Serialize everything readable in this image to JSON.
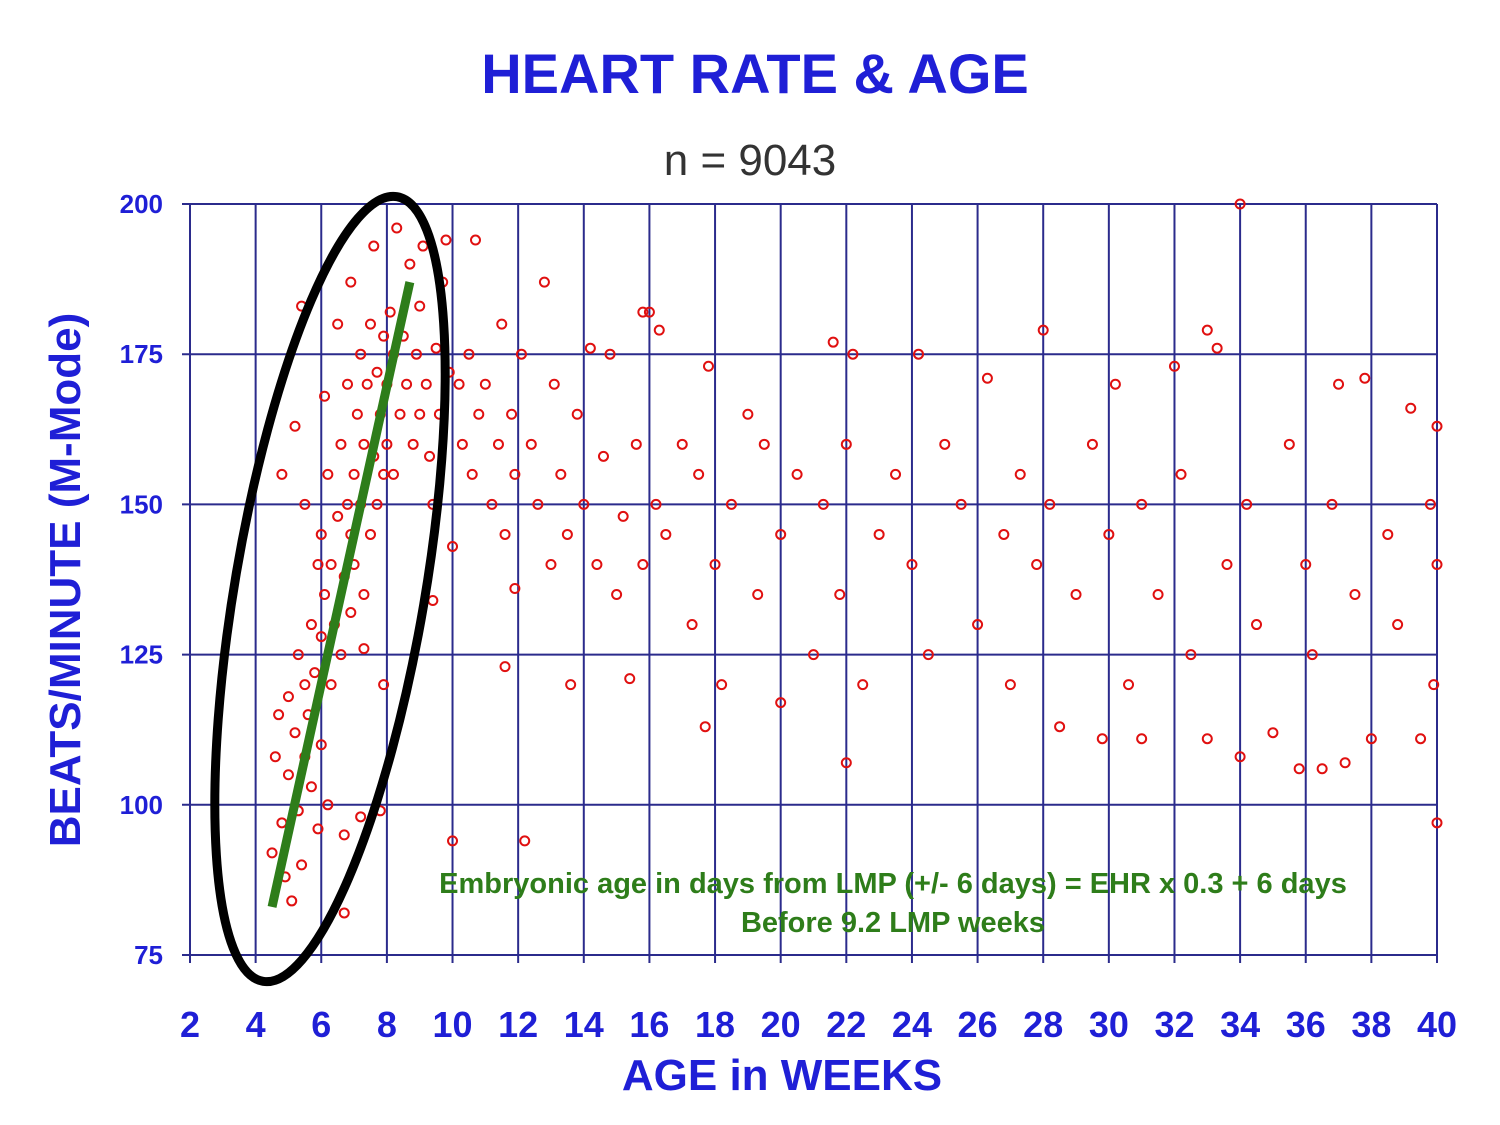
{
  "chart_data": {
    "type": "scatter",
    "title": "HEART RATE & AGE",
    "subtitle": "n = 9043",
    "xlabel": "AGE in WEEKS",
    "ylabel": "BEATS/MINUTE (M-Mode)",
    "xlim": [
      2,
      40
    ],
    "ylim": [
      75,
      200
    ],
    "xticks": [
      "2",
      "4",
      "6",
      "8",
      "10",
      "12",
      "14",
      "16",
      "18",
      "20",
      "22",
      "24",
      "26",
      "28",
      "30",
      "32",
      "34",
      "36",
      "38",
      "40"
    ],
    "yticks": [
      "75",
      "100",
      "125",
      "150",
      "175",
      "200"
    ],
    "grid": true,
    "colors": {
      "title": "#1f1fd6",
      "axis_text": "#1f1fd6",
      "grid": "#2b2b8c",
      "points": "#e01010",
      "trend": "#2e7d1a",
      "ellipse": "#000000",
      "annotation": "#2e7d1a"
    },
    "trend_line": {
      "from": [
        4.5,
        83
      ],
      "to": [
        8.7,
        187
      ]
    },
    "annotation": {
      "line1": "Embryonic age in days from LMP (+/- 6 days) = EHR x 0.3 + 6 days",
      "line2": "Before 9.2 LMP weeks"
    },
    "points": [
      [
        4.5,
        92
      ],
      [
        4.6,
        108
      ],
      [
        4.7,
        115
      ],
      [
        4.8,
        97
      ],
      [
        4.9,
        88
      ],
      [
        5,
        105
      ],
      [
        5,
        118
      ],
      [
        5.1,
        84
      ],
      [
        5.2,
        112
      ],
      [
        5.3,
        99
      ],
      [
        5.3,
        125
      ],
      [
        5.4,
        90
      ],
      [
        5.5,
        120
      ],
      [
        5.5,
        108
      ],
      [
        5.6,
        115
      ],
      [
        5.7,
        103
      ],
      [
        5.7,
        130
      ],
      [
        5.8,
        122
      ],
      [
        5.9,
        96
      ],
      [
        5.9,
        140
      ],
      [
        5.2,
        163
      ],
      [
        4.8,
        155
      ],
      [
        5.4,
        183
      ],
      [
        5.5,
        150
      ],
      [
        6,
        110
      ],
      [
        6,
        128
      ],
      [
        6,
        145
      ],
      [
        6.1,
        135
      ],
      [
        6.2,
        100
      ],
      [
        6.2,
        155
      ],
      [
        6.3,
        120
      ],
      [
        6.3,
        140
      ],
      [
        6.4,
        130
      ],
      [
        6.5,
        148
      ],
      [
        6.5,
        180
      ],
      [
        6.6,
        125
      ],
      [
        6.6,
        160
      ],
      [
        6.7,
        138
      ],
      [
        6.7,
        95
      ],
      [
        6.8,
        150
      ],
      [
        6.8,
        170
      ],
      [
        6.9,
        145
      ],
      [
        6.9,
        132
      ],
      [
        6.7,
        82
      ],
      [
        6.9,
        187
      ],
      [
        6.1,
        168
      ],
      [
        7,
        155
      ],
      [
        7,
        140
      ],
      [
        7.1,
        165
      ],
      [
        7.2,
        150
      ],
      [
        7.2,
        175
      ],
      [
        7.3,
        160
      ],
      [
        7.3,
        135
      ],
      [
        7.4,
        170
      ],
      [
        7.5,
        145
      ],
      [
        7.5,
        180
      ],
      [
        7.6,
        158
      ],
      [
        7.7,
        172
      ],
      [
        7.7,
        150
      ],
      [
        7.8,
        165
      ],
      [
        7.9,
        178
      ],
      [
        7.9,
        155
      ],
      [
        7.6,
        193
      ],
      [
        7.8,
        99
      ],
      [
        7.3,
        126
      ],
      [
        7.9,
        120
      ],
      [
        7.2,
        98
      ],
      [
        8,
        170
      ],
      [
        8,
        160
      ],
      [
        8.1,
        182
      ],
      [
        8.2,
        175
      ],
      [
        8.2,
        155
      ],
      [
        8.3,
        196
      ],
      [
        8.4,
        165
      ],
      [
        8.5,
        178
      ],
      [
        8.6,
        170
      ],
      [
        8.7,
        190
      ],
      [
        8.8,
        160
      ],
      [
        8.9,
        175
      ],
      [
        9,
        183
      ],
      [
        9,
        165
      ],
      [
        9.2,
        170
      ],
      [
        9.3,
        158
      ],
      [
        9.4,
        150
      ],
      [
        9.5,
        176
      ],
      [
        9.6,
        165
      ],
      [
        9.7,
        187
      ],
      [
        9.8,
        194
      ],
      [
        9.9,
        172
      ],
      [
        9.4,
        134
      ],
      [
        10,
        143
      ],
      [
        10,
        94
      ],
      [
        9.1,
        193
      ],
      [
        10.2,
        170
      ],
      [
        10.3,
        160
      ],
      [
        10.5,
        175
      ],
      [
        10.6,
        155
      ],
      [
        10.7,
        194
      ],
      [
        10.8,
        165
      ],
      [
        11,
        170
      ],
      [
        11.2,
        150
      ],
      [
        11.4,
        160
      ],
      [
        11.5,
        180
      ],
      [
        11.6,
        145
      ],
      [
        11.8,
        165
      ],
      [
        11.9,
        155
      ],
      [
        11.6,
        123
      ],
      [
        11.9,
        136
      ],
      [
        12.2,
        94
      ],
      [
        12.1,
        175
      ],
      [
        12.4,
        160
      ],
      [
        12.6,
        150
      ],
      [
        12.8,
        187
      ],
      [
        13,
        140
      ],
      [
        13.1,
        170
      ],
      [
        13.3,
        155
      ],
      [
        13.5,
        145
      ],
      [
        13.6,
        120
      ],
      [
        13.8,
        165
      ],
      [
        14,
        150
      ],
      [
        14.2,
        176
      ],
      [
        14.4,
        140
      ],
      [
        14.6,
        158
      ],
      [
        14.8,
        175
      ],
      [
        15,
        135
      ],
      [
        15.2,
        148
      ],
      [
        15.4,
        121
      ],
      [
        15.6,
        160
      ],
      [
        15.8,
        140
      ],
      [
        15.8,
        182
      ],
      [
        16,
        182
      ],
      [
        16.2,
        150
      ],
      [
        16.3,
        179
      ],
      [
        16.5,
        145
      ],
      [
        17,
        160
      ],
      [
        17.3,
        130
      ],
      [
        17.5,
        155
      ],
      [
        17.7,
        113
      ],
      [
        17.8,
        173
      ],
      [
        18,
        140
      ],
      [
        18.2,
        120
      ],
      [
        18.5,
        150
      ],
      [
        19,
        165
      ],
      [
        19.3,
        135
      ],
      [
        19.5,
        160
      ],
      [
        20,
        117
      ],
      [
        20,
        145
      ],
      [
        20.5,
        155
      ],
      [
        21,
        125
      ],
      [
        21.3,
        150
      ],
      [
        21.6,
        177
      ],
      [
        21.8,
        135
      ],
      [
        22,
        107
      ],
      [
        22,
        160
      ],
      [
        22.2,
        175
      ],
      [
        22.5,
        120
      ],
      [
        23,
        145
      ],
      [
        23.5,
        155
      ],
      [
        24,
        140
      ],
      [
        24.2,
        175
      ],
      [
        24.5,
        125
      ],
      [
        25,
        160
      ],
      [
        25.5,
        150
      ],
      [
        26,
        130
      ],
      [
        26.3,
        171
      ],
      [
        26.8,
        145
      ],
      [
        27,
        120
      ],
      [
        27.3,
        155
      ],
      [
        27.8,
        140
      ],
      [
        28,
        179
      ],
      [
        28.2,
        150
      ],
      [
        28.5,
        113
      ],
      [
        29,
        135
      ],
      [
        29.5,
        160
      ],
      [
        29.8,
        111
      ],
      [
        30,
        145
      ],
      [
        30.2,
        170
      ],
      [
        30.6,
        120
      ],
      [
        31,
        111
      ],
      [
        31,
        150
      ],
      [
        31.5,
        135
      ],
      [
        32,
        173
      ],
      [
        32.2,
        155
      ],
      [
        32.5,
        125
      ],
      [
        33,
        179
      ],
      [
        33,
        111
      ],
      [
        33.3,
        176
      ],
      [
        33.6,
        140
      ],
      [
        34,
        200
      ],
      [
        34,
        108
      ],
      [
        34.2,
        150
      ],
      [
        34.5,
        130
      ],
      [
        35,
        112
      ],
      [
        35.5,
        160
      ],
      [
        35.8,
        106
      ],
      [
        36,
        140
      ],
      [
        36.2,
        125
      ],
      [
        36.5,
        106
      ],
      [
        36.8,
        150
      ],
      [
        37,
        170
      ],
      [
        37.2,
        107
      ],
      [
        37.5,
        135
      ],
      [
        37.8,
        171
      ],
      [
        38,
        111
      ],
      [
        38.5,
        145
      ],
      [
        38.8,
        130
      ],
      [
        39.2,
        166
      ],
      [
        39.5,
        111
      ],
      [
        39.8,
        150
      ],
      [
        39.9,
        120
      ],
      [
        40,
        97
      ],
      [
        40,
        140
      ],
      [
        40,
        163
      ]
    ]
  }
}
